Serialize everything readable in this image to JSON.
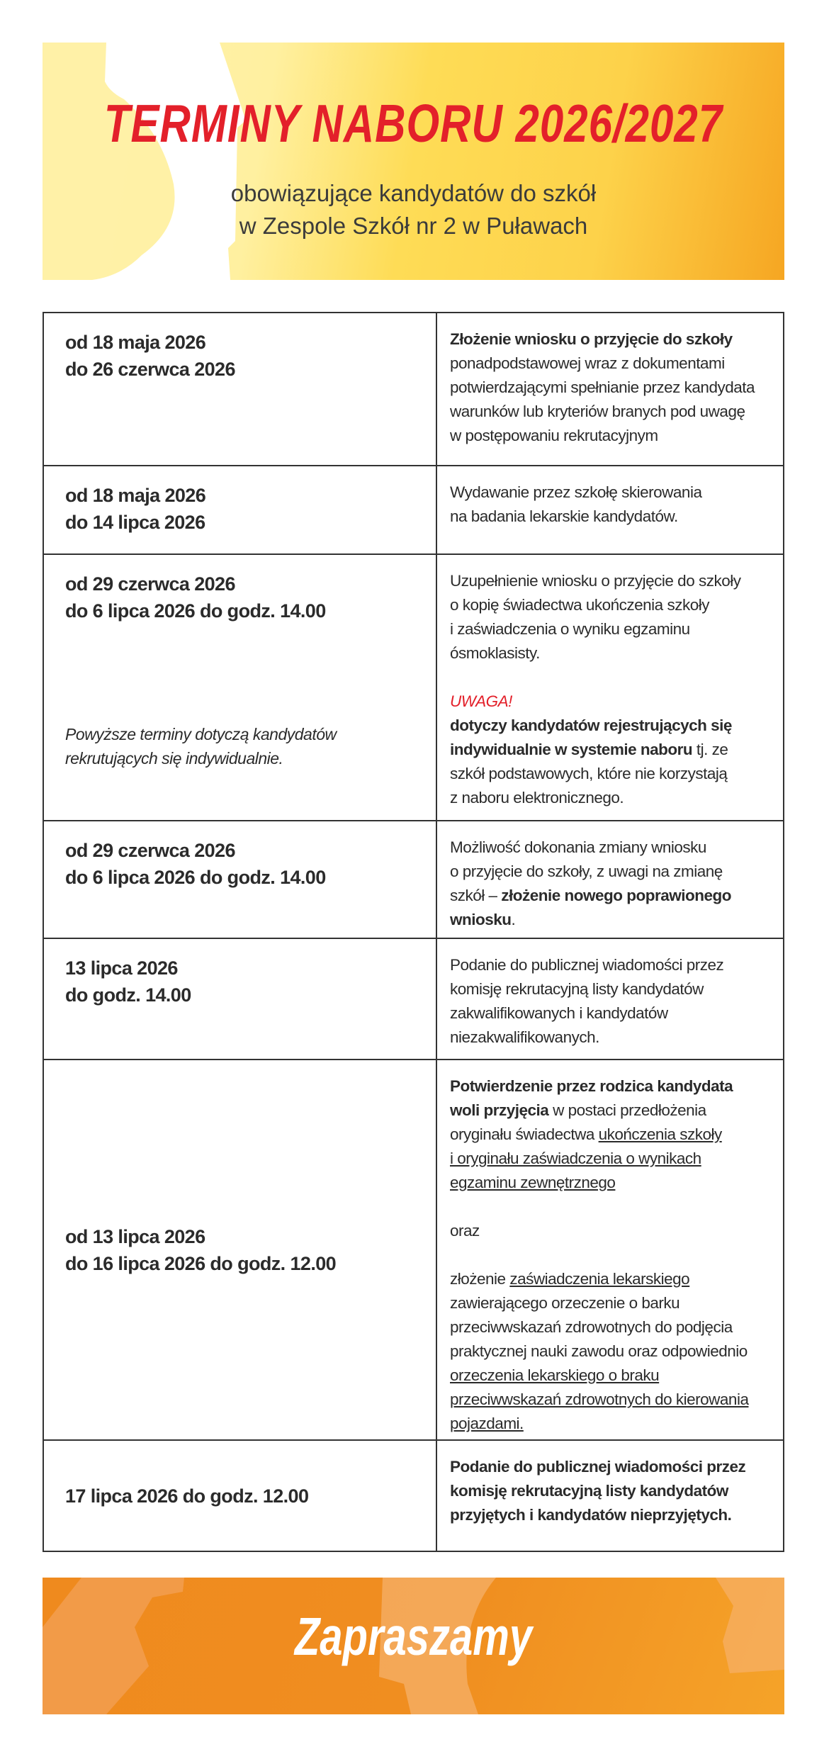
{
  "header": {
    "title": "TERMINY NABORU 2026/2027",
    "subtitle": "obowiązujące kandydatów do szkół\nw Zespole Szkół nr 2 w Puławach",
    "title_color": "#e3202a"
  },
  "rows": [
    {
      "date": "od 18 maja 2026\ndo 26 czerwca 2026",
      "desc": [
        [
          {
            "t": "Złożenie wniosku o przyjęcie do szkoły",
            "b": true
          },
          {
            "t": "\nponadpodstawowej wraz z dokumentami\npotwierdzającymi spełnianie przez kandydata\nwarunków lub kryteriów branych pod uwagę\nw postępowaniu rekrutacyjnym"
          }
        ]
      ]
    },
    {
      "date": "od 18 maja 2026\ndo 14 lipca 2026",
      "desc": [
        [
          {
            "t": "Wydawanie przez szkołę skierowania\nna badania lekarskie kandydatów."
          }
        ]
      ]
    },
    {
      "date": "od 29 czerwca 2026\ndo 6 lipca 2026 do godz. 14.00",
      "note": "Powyższe terminy dotyczą kandydatów\nrekrutujących się indywidualnie.",
      "desc": [
        [
          {
            "t": "Uzupełnienie wniosku o przyjęcie do szkoły\no kopię świadectwa ukończenia szkoły\ni zaświadczenia o wyniku egzaminu\nósmoklasisty."
          }
        ],
        [
          {
            "t": "UWAGA!",
            "i": true,
            "c": "#e3202a"
          },
          {
            "t": "\n"
          },
          {
            "t": "dotyczy kandydatów rejestrujących się\nindywidualnie w systemie naboru",
            "b": true
          },
          {
            "t": " tj. ze\nszkół podstawowych, które nie korzystają\nz naboru elektronicznego."
          }
        ]
      ]
    },
    {
      "date": "od 29 czerwca 2026\ndo 6 lipca 2026 do godz. 14.00",
      "desc": [
        [
          {
            "t": "Możliwość dokonania zmiany wniosku\no przyjęcie do szkoły, z uwagi na zmianę\nszkół – "
          },
          {
            "t": "złożenie nowego poprawionego\nwniosku",
            "b": true
          },
          {
            "t": "."
          }
        ]
      ]
    },
    {
      "date": "13 lipca 2026\ndo godz. 14.00",
      "desc": [
        [
          {
            "t": "Podanie do publicznej wiadomości przez\nkomisję rekrutacyjną listy kandydatów\nzakwalifikowanych i kandydatów\nniezakwalifikowanych."
          }
        ]
      ]
    },
    {
      "date": "od 13 lipca 2026\ndo 16 lipca 2026 do godz. 12.00",
      "desc": [
        [
          {
            "t": "Potwierdzenie przez rodzica kandydata\nwoli przyjęcia",
            "b": true
          },
          {
            "t": " w postaci przedłożenia\noryginału świadectwa "
          },
          {
            "t": "ukończenia szkoły \ni oryginału zaświadczenia o wynikach\negzaminu zewnętrznego",
            "u": true
          }
        ],
        [
          {
            "t": "oraz"
          }
        ],
        [
          {
            "t": "złożenie "
          },
          {
            "t": "zaświadczenia lekarskiego",
            "u": true
          },
          {
            "t": "\nzawierającego orzeczenie o barku\nprzeciwwskazań zdrowotnych do podjęcia\npraktycznej nauki zawodu oraz odpowiednio\n"
          },
          {
            "t": "orzeczenia lekarskiego o braku\nprzeciwwskazań zdrowotnych do kierowania\npojazdami.",
            "u": true
          }
        ]
      ]
    },
    {
      "date": "17 lipca 2026 do godz. 12.00",
      "desc": [
        [
          {
            "t": "Podanie do publicznej wiadomości przez\nkomisję rekrutacyjną listy kandydatów\nprzyjętych i kandydatów nieprzyjętych.",
            "b": true
          }
        ]
      ]
    }
  ],
  "footer": {
    "text": "Zapraszamy"
  }
}
